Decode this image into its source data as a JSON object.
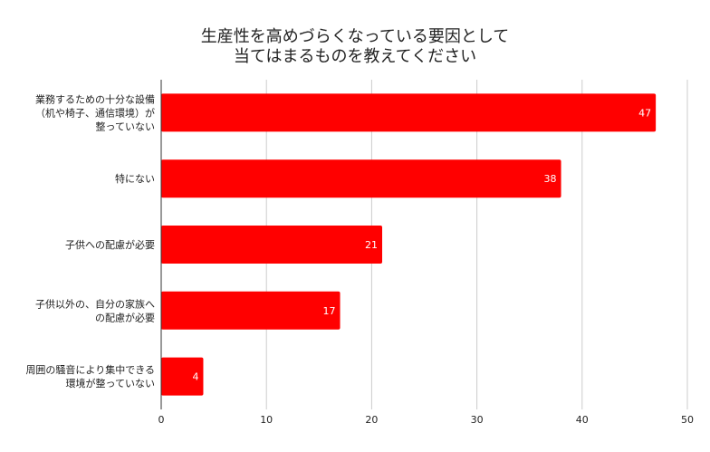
{
  "chart_data": {
    "type": "bar",
    "orientation": "horizontal",
    "title_lines": [
      "生産性を高めづらくなっている要因として",
      "当てはまるものを教えてください"
    ],
    "categories": [
      [
        "業務するための十分な設備",
        "（机や椅子、通信環境）が",
        "整っていない"
      ],
      [
        "特にない"
      ],
      [
        "子供への配慮が必要"
      ],
      [
        "子供以外の、自分の家族へ",
        "の配慮が必要"
      ],
      [
        "周囲の騒音により集中できる",
        "環境が整っていない"
      ]
    ],
    "values": [
      47,
      38,
      21,
      17,
      4
    ],
    "xlim": [
      0,
      50
    ],
    "xticks": [
      0,
      10,
      20,
      30,
      40,
      50
    ],
    "grid": true,
    "legend": "none",
    "colors": {
      "bar": "#ff0000",
      "grid": "#cccccc",
      "axis": "#333333",
      "value_label": "#ffffff",
      "text": "#222222"
    }
  }
}
